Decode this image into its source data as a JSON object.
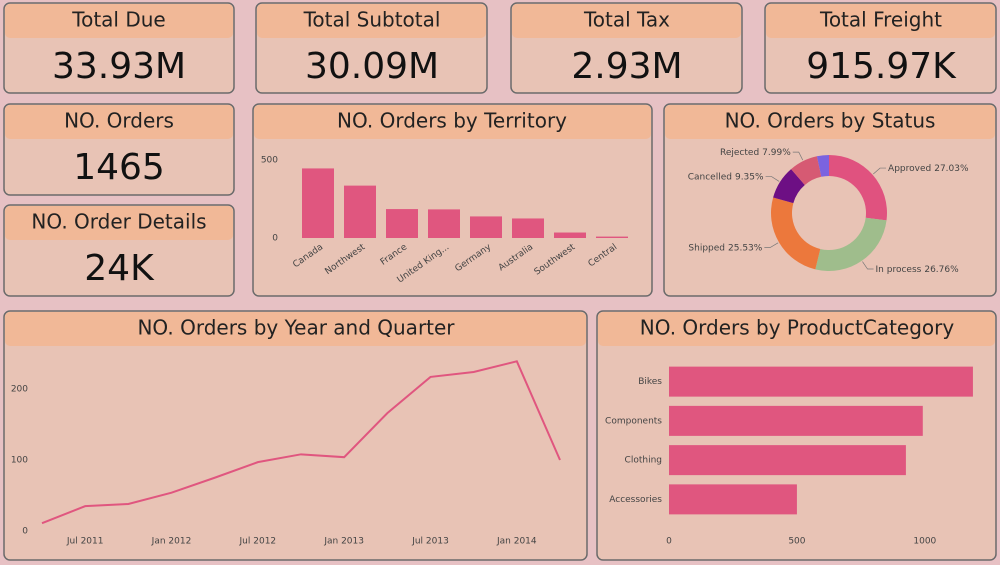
{
  "cards": [
    {
      "title": "Total Due",
      "value": "33.93M"
    },
    {
      "title": "Total Subtotal",
      "value": "30.09M"
    },
    {
      "title": "Total Tax",
      "value": "2.93M"
    },
    {
      "title": "Total Freight",
      "value": "915.97K"
    },
    {
      "title": "NO. Orders",
      "value": "1465"
    },
    {
      "title": "NO. Order Details",
      "value": "24K"
    }
  ],
  "chart_data": [
    {
      "type": "bar",
      "title": "NO. Orders by Territory",
      "categories": [
        "Canada",
        "Northwest",
        "France",
        "United King...",
        "Germany",
        "Australia",
        "Southwest",
        "Central"
      ],
      "values": [
        445,
        335,
        185,
        183,
        138,
        125,
        35,
        9
      ],
      "color": "#e0567f",
      "ylim": [
        0,
        550
      ],
      "yticks": [
        0,
        500
      ]
    },
    {
      "type": "pie",
      "title": "NO. Orders by Status",
      "donut": true,
      "categories": [
        "Approved",
        "In process",
        "Shipped",
        "Cancelled",
        "Rejected",
        null
      ],
      "values": [
        27.03,
        26.76,
        25.53,
        9.35,
        7.99,
        3.34
      ],
      "value_labels": [
        "27.03%",
        "26.76%",
        "25.53%",
        "9.35%",
        "7.99%",
        null
      ],
      "colors": [
        "#e0527f",
        "#9fbd8c",
        "#ec783c",
        "#6d0f84",
        "#d65a73",
        "#7b63e0"
      ]
    },
    {
      "type": "line",
      "title": "NO. Orders by Year and Quarter",
      "x": [
        "2011-04",
        "2011-07",
        "2011-10",
        "2012-01",
        "2012-04",
        "2012-07",
        "2012-10",
        "2013-01",
        "2013-04",
        "2013-07",
        "2013-10",
        "2014-01",
        "2014-04"
      ],
      "values": [
        11,
        35,
        38,
        54,
        75,
        97,
        108,
        104,
        166,
        217,
        224,
        239,
        100
      ],
      "color": "#e0567f",
      "xlim": [
        "2011-04",
        "2014-04"
      ],
      "xticks": [
        {
          "value": "2011-07",
          "label": "Jul 2011"
        },
        {
          "value": "2012-01",
          "label": "Jan 2012"
        },
        {
          "value": "2012-07",
          "label": "Jul 2012"
        },
        {
          "value": "2013-01",
          "label": "Jan 2013"
        },
        {
          "value": "2013-07",
          "label": "Jul 2013"
        },
        {
          "value": "2014-01",
          "label": "Jan 2014"
        }
      ],
      "ylim": [
        0,
        250
      ],
      "yticks": [
        0,
        100,
        200
      ]
    },
    {
      "type": "bar",
      "orientation": "horizontal",
      "title": "NO. Orders by ProductCategory",
      "categories": [
        "Bikes",
        "Components",
        "Clothing",
        "Accessories"
      ],
      "values": [
        1188,
        992,
        926,
        500
      ],
      "color": "#e0567f",
      "xlim": [
        0,
        1200
      ],
      "xticks": [
        0,
        500,
        1000
      ]
    }
  ]
}
